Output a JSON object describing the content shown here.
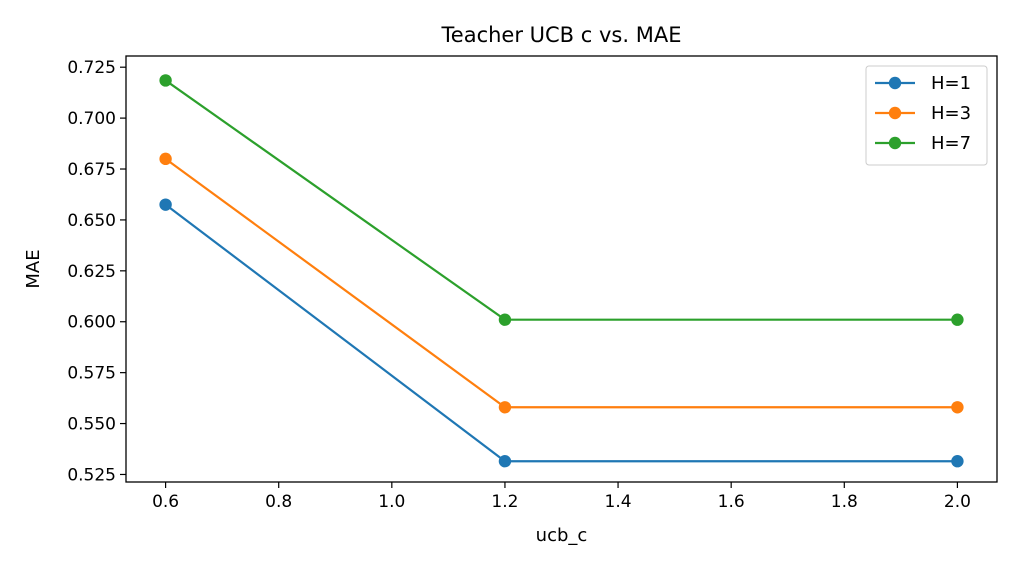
{
  "chart_data": {
    "type": "line",
    "title": "Teacher UCB c vs. MAE",
    "xlabel": "ucb_c",
    "ylabel": "MAE",
    "x": [
      0.6,
      1.2,
      2.0
    ],
    "xlim": [
      0.53,
      2.07
    ],
    "ylim": [
      0.5213,
      0.7305
    ],
    "xticks": [
      "0.6",
      "0.8",
      "1.0",
      "1.2",
      "1.4",
      "1.6",
      "1.8",
      "2.0"
    ],
    "yticks": [
      "0.525",
      "0.550",
      "0.575",
      "0.600",
      "0.625",
      "0.650",
      "0.675",
      "0.700",
      "0.725"
    ],
    "grid": false,
    "legend_position": "top-right",
    "series": [
      {
        "name": "H=1",
        "color": "#1f77b4",
        "values": [
          0.6575,
          0.5315,
          0.5315
        ]
      },
      {
        "name": "H=3",
        "color": "#ff7f0e",
        "values": [
          0.68,
          0.558,
          0.558
        ]
      },
      {
        "name": "H=7",
        "color": "#2ca02c",
        "values": [
          0.7185,
          0.601,
          0.601
        ]
      }
    ]
  }
}
